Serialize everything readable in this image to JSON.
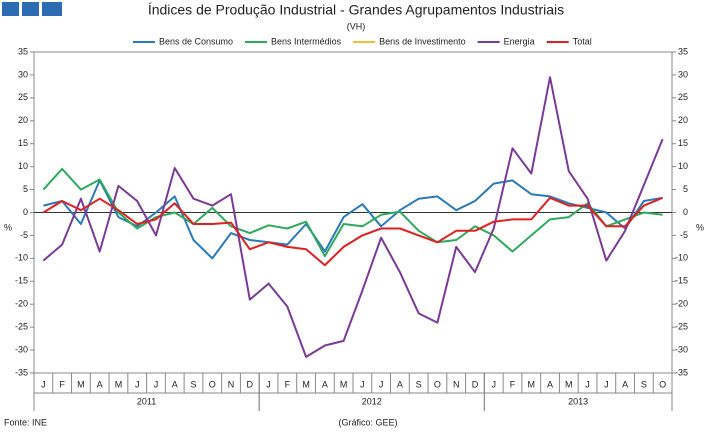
{
  "chart_data": {
    "type": "line",
    "title": "Índices de Produção Industrial - Grandes Agrupamentos Industriais",
    "subtitle": "(VH)",
    "ylabel": "%",
    "y2label": "%",
    "source": "Fonte: INE",
    "credit": "(Gráfico: GEE)",
    "categories": [
      "J",
      "F",
      "M",
      "A",
      "M",
      "J",
      "J",
      "A",
      "S",
      "O",
      "N",
      "D",
      "J",
      "F",
      "M",
      "A",
      "M",
      "J",
      "J",
      "A",
      "S",
      "O",
      "N",
      "D",
      "J",
      "F",
      "M",
      "A",
      "M",
      "J",
      "J",
      "A",
      "S",
      "O"
    ],
    "year_groups": [
      {
        "label": "2011",
        "count": 12
      },
      {
        "label": "2012",
        "count": 12
      },
      {
        "label": "2013",
        "count": 10
      }
    ],
    "ylim": [
      -35,
      35
    ],
    "yticks": [
      -35,
      -30,
      -25,
      -20,
      -15,
      -10,
      -5,
      0,
      5,
      10,
      15,
      20,
      25,
      30,
      35
    ],
    "y2lim": [
      -35,
      35
    ],
    "y2ticks": [
      -35,
      -30,
      -25,
      -20,
      -15,
      -10,
      -5,
      0,
      5,
      10,
      15,
      20,
      25,
      30,
      35
    ],
    "legend": "top",
    "series": [
      {
        "name": "Bens de Consumo",
        "color": "#2a7ab8",
        "values": [
          1.5,
          2.5,
          -2.5,
          7,
          -1,
          -3,
          0,
          3.5,
          -6,
          -10,
          -4.5,
          -6,
          -6.5,
          -7,
          -2.5,
          -8.5,
          -1,
          1.8,
          -3,
          0.5,
          3,
          3.5,
          0.5,
          2.5,
          6.3,
          7,
          4,
          3.5,
          2,
          1,
          0,
          -3.5,
          2.5,
          3.2
        ]
      },
      {
        "name": "Bens Intermédios",
        "color": "#2eaa5c",
        "values": [
          5,
          9.5,
          5,
          7.2,
          0,
          -3.5,
          -1,
          0,
          -2.5,
          1,
          -3,
          -4.5,
          -2.8,
          -3.5,
          -2,
          -9.5,
          -2.5,
          -3,
          -0.5,
          0.2,
          -4,
          -6.5,
          -6,
          -3,
          -5,
          -8.5,
          -5,
          -1.5,
          -1,
          2,
          -3,
          -1.5,
          0,
          -0.5
        ]
      },
      {
        "name": "Bens de Investimento",
        "color": "#f0c030",
        "values": [
          null,
          null,
          null,
          null,
          null,
          null,
          null,
          null,
          null,
          null,
          null,
          null,
          null,
          null,
          null,
          null,
          null,
          null,
          null,
          null,
          null,
          null,
          null,
          null,
          null,
          null,
          null,
          null,
          null,
          null,
          null,
          null,
          null,
          null
        ]
      },
      {
        "name": "Energia",
        "color": "#7a3a96",
        "values": [
          -10.5,
          -7,
          3,
          -8.5,
          5.8,
          2.5,
          -5,
          9.7,
          3,
          1.5,
          4,
          -19,
          -15.5,
          -20.5,
          -31.5,
          -29,
          -28,
          -17,
          -5.5,
          -13,
          -22,
          -24,
          -7.5,
          -13,
          -3.5,
          14,
          8.5,
          29.5,
          9,
          3,
          -10.5,
          -4,
          6,
          16
        ]
      },
      {
        "name": "Total",
        "color": "#e02020",
        "values": [
          0,
          2.5,
          0.5,
          3,
          0.5,
          -2.5,
          -1.5,
          2,
          -2.5,
          -2.5,
          -2.2,
          -8,
          -6.5,
          -7.5,
          -8,
          -11.5,
          -7.5,
          -5,
          -3.5,
          -3.5,
          -5,
          -6.5,
          -4,
          -4,
          -2,
          -1.5,
          -1.5,
          3.2,
          1.5,
          1.5,
          -3,
          -3,
          1.5,
          3.2
        ]
      }
    ]
  }
}
